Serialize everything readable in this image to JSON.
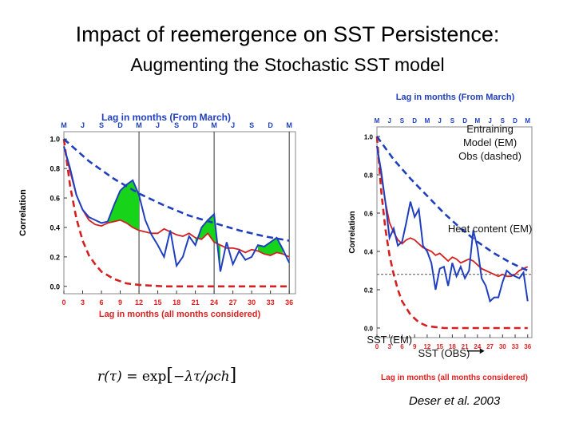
{
  "title": "Impact of reemergence on SST Persistence:",
  "subtitle": "Augmenting the Stochastic SST model",
  "credit": "Deser et al. 2003",
  "formula": {
    "lhs": "r(τ)",
    "eq": "= exp",
    "arg": "−λτ/ρch"
  },
  "colors": {
    "obs": "#1f3fbf",
    "model": "#d42020",
    "fill": "#17d41a",
    "axis_label": "#e02020",
    "top_label": "#1f3fbf"
  },
  "chart_data": [
    {
      "type": "line",
      "top_axis_title": "Lag in months (From March)",
      "top_ticks": [
        "M",
        "J",
        "S",
        "D",
        "M",
        "J",
        "S",
        "D",
        "M",
        "J",
        "S",
        "D",
        "M"
      ],
      "bottom_axis_title": "Lag in months   (all months considered)",
      "x_ticks": [
        0,
        3,
        6,
        9,
        12,
        15,
        18,
        21,
        24,
        27,
        30,
        33,
        36
      ],
      "x_tick_labels": [
        "0",
        "3",
        "6",
        "9",
        "12",
        "15",
        "18",
        "21",
        "24",
        "27",
        "30",
        "33",
        "36"
      ],
      "xlim": [
        0,
        37
      ],
      "ylabel": "Correlation",
      "y_ticks": [
        0.0,
        0.2,
        0.4,
        0.6,
        0.8,
        1.0
      ],
      "y_tick_labels": [
        "0.0",
        "0.2",
        "0.4",
        "0.6",
        "0.8",
        "1.0"
      ],
      "ylim": [
        -0.05,
        1.05
      ],
      "vertical_lines": [
        12,
        24,
        36
      ],
      "series": [
        {
          "style": "dashed-blue",
          "x": [
            0,
            4,
            8,
            12,
            16,
            20,
            24,
            28,
            32,
            36
          ],
          "y": [
            1.0,
            0.85,
            0.73,
            0.63,
            0.55,
            0.48,
            0.43,
            0.38,
            0.34,
            0.31
          ]
        },
        {
          "style": "dashed-red",
          "x": [
            0,
            1,
            2,
            3,
            4,
            5,
            6,
            8,
            10,
            12,
            16,
            20,
            24,
            30,
            36
          ],
          "y": [
            1.0,
            0.68,
            0.46,
            0.31,
            0.21,
            0.15,
            0.1,
            0.05,
            0.02,
            0.01,
            0.0,
            0.0,
            0.0,
            0.0,
            0.0
          ]
        },
        {
          "style": "solid-blue",
          "x": [
            0,
            1,
            2,
            3,
            4,
            5,
            6,
            7,
            8,
            9,
            10,
            11,
            12,
            13,
            14,
            15,
            16,
            17,
            18,
            19,
            20,
            21,
            22,
            23,
            24,
            25,
            26,
            27,
            28,
            29,
            30,
            31,
            32,
            33,
            34,
            35,
            36
          ],
          "y": [
            0.95,
            0.8,
            0.62,
            0.52,
            0.47,
            0.45,
            0.43,
            0.44,
            0.55,
            0.65,
            0.69,
            0.72,
            0.62,
            0.45,
            0.35,
            0.28,
            0.2,
            0.38,
            0.14,
            0.2,
            0.34,
            0.28,
            0.4,
            0.45,
            0.49,
            0.1,
            0.3,
            0.15,
            0.24,
            0.18,
            0.2,
            0.28,
            0.27,
            0.3,
            0.33,
            0.25,
            0.16
          ]
        },
        {
          "style": "solid-red",
          "x": [
            0,
            1,
            2,
            3,
            4,
            5,
            6,
            7,
            8,
            9,
            10,
            11,
            12,
            13,
            14,
            15,
            16,
            17,
            18,
            19,
            20,
            21,
            22,
            23,
            24,
            25,
            26,
            27,
            28,
            29,
            30,
            31,
            32,
            33,
            34,
            35,
            36
          ],
          "y": [
            0.95,
            0.78,
            0.62,
            0.52,
            0.45,
            0.42,
            0.41,
            0.43,
            0.44,
            0.45,
            0.43,
            0.4,
            0.38,
            0.37,
            0.36,
            0.36,
            0.39,
            0.37,
            0.35,
            0.34,
            0.36,
            0.33,
            0.32,
            0.36,
            0.3,
            0.28,
            0.26,
            0.26,
            0.25,
            0.23,
            0.25,
            0.24,
            0.22,
            0.21,
            0.23,
            0.22,
            0.2
          ]
        }
      ],
      "fill_between": [
        [
          7,
          12
        ],
        [
          21,
          25
        ],
        [
          31,
          35
        ]
      ]
    },
    {
      "type": "line",
      "top_axis_title": "Lag in months (From March)",
      "top_ticks": [
        "M",
        "J",
        "S",
        "D",
        "M",
        "J",
        "S",
        "D",
        "M",
        "J",
        "S",
        "D",
        "M"
      ],
      "bottom_axis_title": "Lag in months (all months considered)",
      "x_ticks": [
        0,
        3,
        6,
        9,
        12,
        15,
        18,
        21,
        24,
        27,
        30,
        33,
        36
      ],
      "x_tick_labels": [
        "0",
        "3",
        "6",
        "9",
        "12",
        "15",
        "18",
        "21",
        "24",
        "27",
        "30",
        "33",
        "36"
      ],
      "xlim": [
        0,
        37
      ],
      "ylabel": "Correlation",
      "y_ticks": [
        0.0,
        0.2,
        0.4,
        0.6,
        0.8,
        1.0
      ],
      "y_tick_labels": [
        "0.0",
        "0.2",
        "0.4",
        "0.6",
        "0.8",
        "1.0"
      ],
      "ylim": [
        -0.05,
        1.05
      ],
      "reference_line_y": 0.28,
      "annotations": [
        {
          "text": "Entraining",
          "x": 27,
          "y": 1.02
        },
        {
          "text": "Model (EM)",
          "x": 27,
          "y": 0.95
        },
        {
          "text": "Obs (dashed)",
          "x": 27,
          "y": 0.88
        },
        {
          "text": "Heat content (EM)",
          "x": 27,
          "y": 0.5
        },
        {
          "text": "SST (EM)",
          "x": 3,
          "y": -0.08
        },
        {
          "text": "SST (OBS)",
          "x": 16,
          "y": -0.15
        }
      ],
      "series": [
        {
          "style": "dashed-blue",
          "x": [
            0,
            4,
            8,
            12,
            16,
            20,
            24,
            28,
            32,
            36
          ],
          "y": [
            1.0,
            0.88,
            0.78,
            0.69,
            0.6,
            0.52,
            0.45,
            0.39,
            0.34,
            0.3
          ]
        },
        {
          "style": "dashed-red",
          "x": [
            0,
            1,
            2,
            3,
            4,
            5,
            6,
            8,
            10,
            12,
            16,
            20,
            24,
            30,
            36
          ],
          "y": [
            1.0,
            0.72,
            0.52,
            0.38,
            0.28,
            0.2,
            0.14,
            0.07,
            0.03,
            0.01,
            0.0,
            0.0,
            0.0,
            0.0,
            0.0
          ]
        },
        {
          "style": "solid-blue",
          "x": [
            0,
            1,
            2,
            3,
            4,
            5,
            6,
            7,
            8,
            9,
            10,
            11,
            12,
            13,
            14,
            15,
            16,
            17,
            18,
            19,
            20,
            21,
            22,
            23,
            24,
            25,
            26,
            27,
            28,
            29,
            30,
            31,
            32,
            33,
            34,
            35,
            36
          ],
          "y": [
            0.95,
            0.82,
            0.66,
            0.47,
            0.52,
            0.43,
            0.45,
            0.55,
            0.66,
            0.58,
            0.62,
            0.43,
            0.4,
            0.34,
            0.2,
            0.31,
            0.32,
            0.22,
            0.34,
            0.27,
            0.32,
            0.26,
            0.3,
            0.51,
            0.42,
            0.26,
            0.22,
            0.14,
            0.16,
            0.16,
            0.24,
            0.3,
            0.28,
            0.27,
            0.26,
            0.29,
            0.14
          ]
        },
        {
          "style": "solid-red",
          "x": [
            0,
            1,
            2,
            3,
            4,
            5,
            6,
            7,
            8,
            9,
            10,
            11,
            12,
            13,
            14,
            15,
            16,
            17,
            18,
            19,
            20,
            21,
            22,
            23,
            24,
            25,
            26,
            27,
            28,
            29,
            30,
            31,
            32,
            33,
            34,
            35,
            36
          ],
          "y": [
            0.95,
            0.8,
            0.66,
            0.55,
            0.5,
            0.46,
            0.44,
            0.46,
            0.47,
            0.46,
            0.44,
            0.42,
            0.41,
            0.4,
            0.38,
            0.39,
            0.37,
            0.35,
            0.37,
            0.36,
            0.34,
            0.35,
            0.36,
            0.35,
            0.33,
            0.31,
            0.3,
            0.29,
            0.28,
            0.27,
            0.28,
            0.27,
            0.27,
            0.28,
            0.3,
            0.31,
            0.32
          ]
        }
      ]
    }
  ]
}
